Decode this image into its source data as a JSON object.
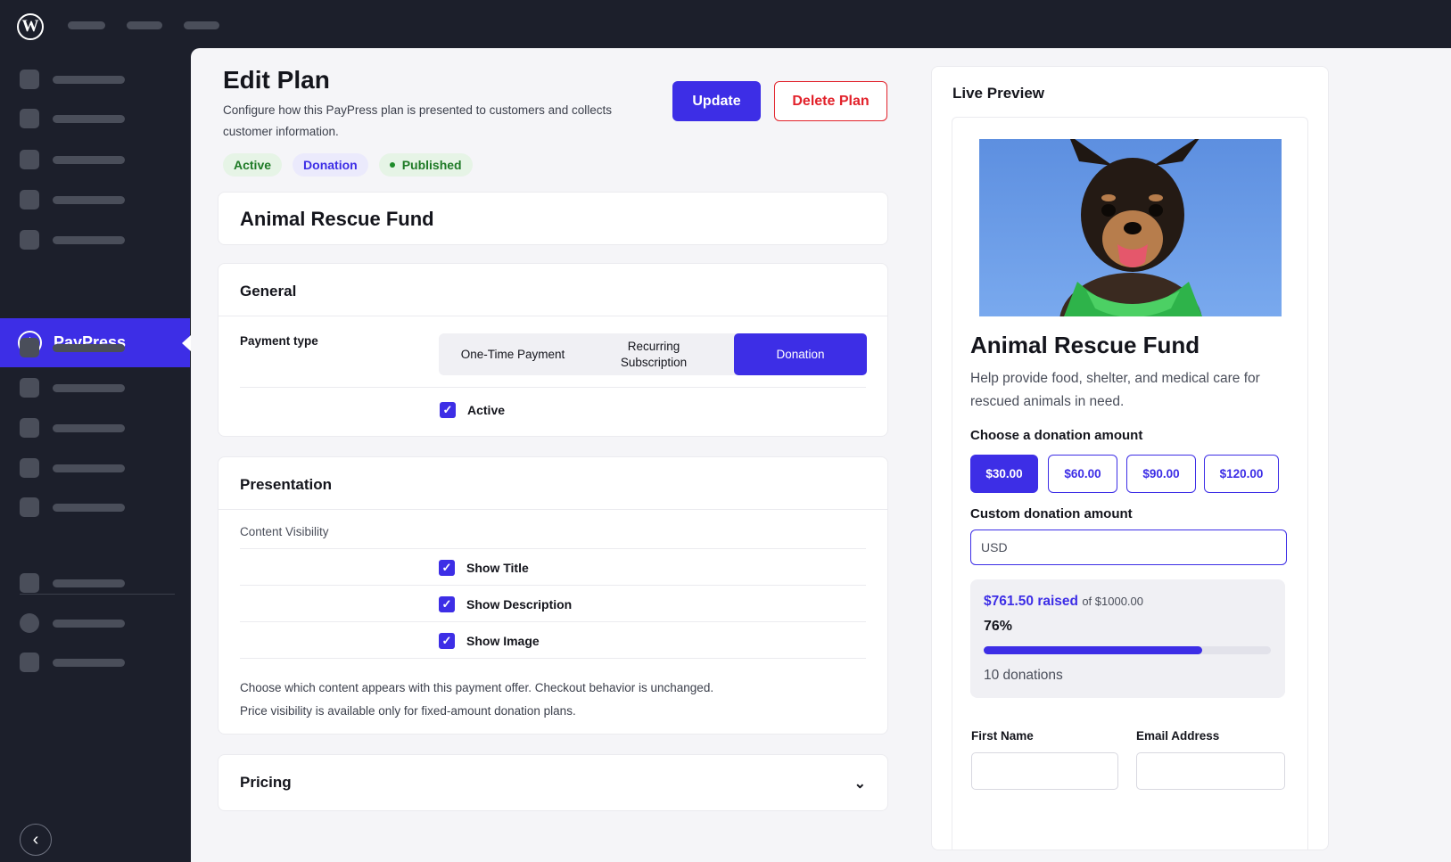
{
  "app": {
    "logo": "W"
  },
  "sidebar": {
    "active_item": {
      "label": "PayPress",
      "icon": "dollar-circle-icon"
    },
    "collapse_icon": "‹"
  },
  "page": {
    "title": "Edit Plan",
    "description": "Configure how this PayPress plan is presented to customers and collects customer information.",
    "update_label": "Update",
    "delete_label": "Delete Plan",
    "badges": {
      "active": "Active",
      "donation": "Donation",
      "published": "Published"
    }
  },
  "plan": {
    "name": "Animal Rescue Fund"
  },
  "general": {
    "title": "General",
    "payment_type_label": "Payment type",
    "options": [
      "One-Time Payment",
      "Recurring Subscription",
      "Donation"
    ],
    "selected": "Donation",
    "active_label": "Active",
    "active_checked": true
  },
  "presentation": {
    "title": "Presentation",
    "visibility_label": "Content Visibility",
    "checks": [
      {
        "label": "Show Title",
        "checked": true
      },
      {
        "label": "Show Description",
        "checked": true
      },
      {
        "label": "Show Image",
        "checked": true
      }
    ],
    "help_line1": "Choose which content appears with this payment offer. Checkout behavior is unchanged.",
    "help_line2": "Price visibility is available only for fixed-amount donation plans."
  },
  "pricing": {
    "title": "Pricing",
    "expanded": false
  },
  "preview": {
    "title": "Live Preview",
    "name": "Animal Rescue Fund",
    "description": "Help provide food, shelter, and medical care for rescued animals in need.",
    "choose_label": "Choose a donation amount",
    "amounts": [
      "$30.00",
      "$60.00",
      "$90.00",
      "$120.00"
    ],
    "selected_amount": "$30.00",
    "custom_label": "Custom donation amount",
    "custom_placeholder": "USD",
    "raised": "$761.50 raised",
    "raised_of": "of $1000.00",
    "percent_label": "76%",
    "progress": 0.7615,
    "donations": "10 donations",
    "first_name_label": "First Name",
    "email_label": "Email Address"
  },
  "colors": {
    "accent": "#3d2ee6",
    "danger": "#e2222b",
    "success": "#1e7a26",
    "sidebar": "#1c1f2b"
  }
}
